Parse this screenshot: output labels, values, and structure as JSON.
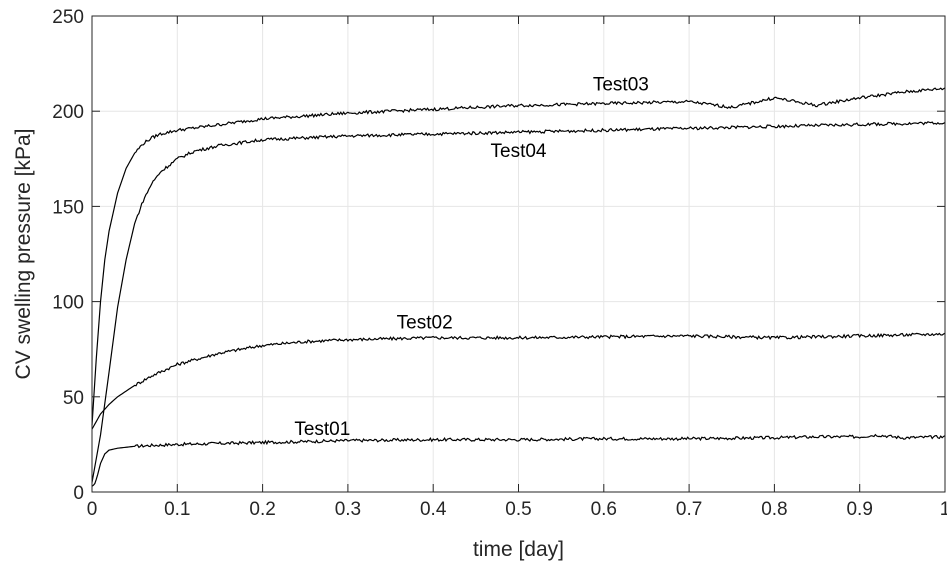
{
  "chart_data": {
    "type": "line",
    "title": "",
    "xlabel": "time [day]",
    "ylabel": "CV swelling pressure [kPa]",
    "xlim": [
      0,
      1
    ],
    "ylim": [
      0,
      250
    ],
    "xticks": [
      0,
      0.1,
      0.2,
      0.3,
      0.4,
      0.5,
      0.6,
      0.7,
      0.8,
      0.9,
      1
    ],
    "xtick_labels": [
      "0",
      "0.1",
      "0.2",
      "0.3",
      "0.4",
      "0.5",
      "0.6",
      "0.7",
      "0.8",
      "0.9",
      "1"
    ],
    "yticks": [
      0,
      50,
      100,
      150,
      200,
      250
    ],
    "ytick_labels": [
      "0",
      "50",
      "100",
      "150",
      "200",
      "250"
    ],
    "grid": true,
    "legend": "none (series labeled inline)",
    "line_color": "#000000",
    "grid_color": "#e6e6e6",
    "series": [
      {
        "name": "Test01",
        "label_at": [
          0.27,
          30
        ],
        "x": [
          0,
          0.003,
          0.006,
          0.01,
          0.015,
          0.02,
          0.03,
          0.04,
          0.05,
          0.07,
          0.1,
          0.15,
          0.2,
          0.25,
          0.3,
          0.4,
          0.5,
          0.6,
          0.7,
          0.8,
          0.85,
          0.9,
          0.92,
          0.95,
          1.0
        ],
        "y": [
          3,
          4,
          8,
          15,
          20,
          22,
          23,
          23.5,
          24,
          24.5,
          25,
          25.5,
          26,
          26.5,
          27,
          27.5,
          27.5,
          28,
          28,
          28.5,
          29,
          29,
          30,
          28.5,
          29
        ]
      },
      {
        "name": "Test02",
        "label_at": [
          0.39,
          86
        ],
        "x": [
          0,
          0.01,
          0.02,
          0.03,
          0.05,
          0.07,
          0.1,
          0.15,
          0.2,
          0.25,
          0.3,
          0.4,
          0.5,
          0.6,
          0.7,
          0.8,
          0.9,
          1.0
        ],
        "y": [
          33,
          41,
          46,
          50,
          56,
          61,
          67,
          73,
          77,
          79,
          80,
          81,
          81,
          81.5,
          82,
          81,
          82,
          83
        ]
      },
      {
        "name": "Test03",
        "label_at": [
          0.62,
          211
        ],
        "x": [
          0,
          0.005,
          0.01,
          0.015,
          0.02,
          0.03,
          0.04,
          0.05,
          0.06,
          0.07,
          0.08,
          0.1,
          0.15,
          0.2,
          0.3,
          0.4,
          0.5,
          0.6,
          0.7,
          0.75,
          0.77,
          0.8,
          0.85,
          0.86,
          0.9,
          0.95,
          1.0
        ],
        "y": [
          35,
          70,
          100,
          122,
          137,
          157,
          170,
          178,
          183,
          186,
          188,
          190,
          193,
          196,
          199,
          201,
          203,
          204,
          205,
          202,
          204,
          207,
          203,
          204,
          207,
          210,
          212
        ]
      },
      {
        "name": "Test04",
        "label_at": [
          0.5,
          176
        ],
        "x": [
          0,
          0.01,
          0.02,
          0.03,
          0.04,
          0.05,
          0.06,
          0.07,
          0.08,
          0.1,
          0.12,
          0.15,
          0.2,
          0.3,
          0.4,
          0.5,
          0.6,
          0.7,
          0.8,
          0.9,
          1.0
        ],
        "y": [
          5,
          30,
          63,
          97,
          122,
          141,
          153,
          162,
          168,
          175,
          179,
          182,
          185,
          187,
          188,
          189,
          190,
          191,
          192,
          193,
          194
        ]
      }
    ]
  }
}
